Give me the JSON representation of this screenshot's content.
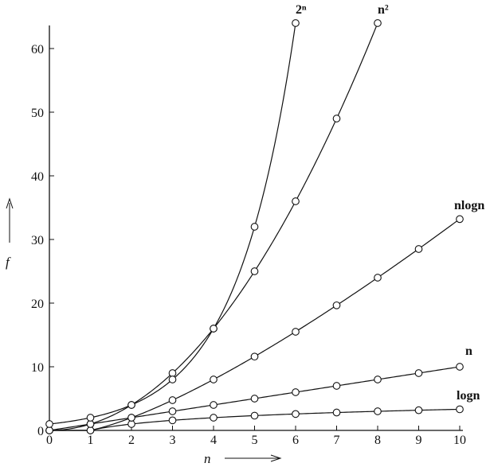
{
  "chart_data": {
    "type": "line",
    "title": "",
    "xlabel": "n",
    "ylabel": "f",
    "xlim": [
      0,
      10
    ],
    "ylim": [
      0,
      65
    ],
    "x_ticks": [
      "0",
      "1",
      "2",
      "3",
      "4",
      "5",
      "6",
      "7",
      "8",
      "9",
      "10"
    ],
    "y_ticks": [
      "0",
      "10",
      "20",
      "30",
      "40",
      "50",
      "60"
    ],
    "grid": false,
    "legend": "none",
    "marker": "open-circle",
    "line_color": "#111111",
    "series": [
      {
        "name": "logn",
        "x": [
          0,
          1,
          2,
          3,
          4,
          5,
          6,
          7,
          8,
          9,
          10
        ],
        "y": [
          0,
          0,
          1,
          1.58,
          2,
          2.32,
          2.58,
          2.81,
          3,
          3.17,
          3.32
        ]
      },
      {
        "name": "n",
        "x": [
          0,
          1,
          2,
          3,
          4,
          5,
          6,
          7,
          8,
          9,
          10
        ],
        "y": [
          0,
          1,
          2,
          3,
          4,
          5,
          6,
          7,
          8,
          9,
          10
        ]
      },
      {
        "name": "nlogn",
        "x": [
          0,
          1,
          2,
          3,
          4,
          5,
          6,
          7,
          8,
          9,
          10
        ],
        "y": [
          0,
          0,
          2,
          4.75,
          8,
          11.6,
          15.5,
          19.65,
          24,
          28.5,
          33.2
        ]
      },
      {
        "name": "n²",
        "x": [
          0,
          1,
          2,
          3,
          4,
          5,
          6,
          7,
          8
        ],
        "y": [
          0,
          1,
          4,
          9,
          16,
          25,
          36,
          49,
          64
        ]
      },
      {
        "name": "2ⁿ",
        "x": [
          0,
          1,
          2,
          3,
          4,
          5,
          6
        ],
        "y": [
          1,
          2,
          4,
          8,
          16,
          32,
          64
        ]
      }
    ]
  }
}
